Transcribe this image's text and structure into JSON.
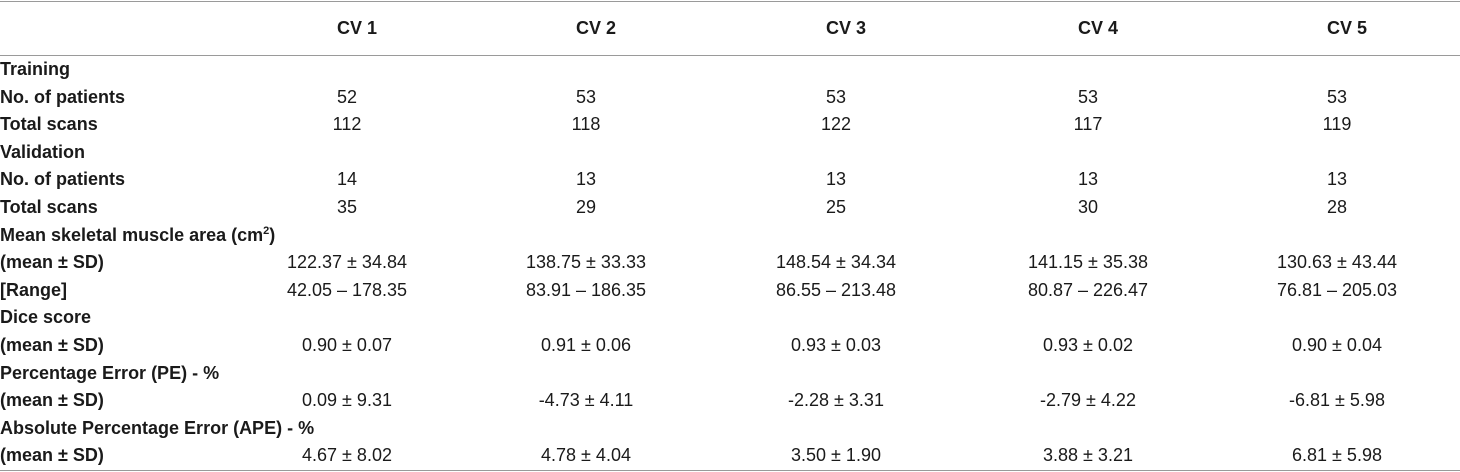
{
  "header": {
    "blank": "",
    "columns": [
      "CV 1",
      "CV 2",
      "CV 3",
      "CV 4",
      "CV 5"
    ]
  },
  "rows": [
    {
      "label": "Training",
      "values": [
        "",
        "",
        "",
        "",
        ""
      ]
    },
    {
      "label": "No. of patients",
      "values": [
        "52",
        "53",
        "53",
        "53",
        "53"
      ]
    },
    {
      "label": "Total scans",
      "values": [
        "112",
        "118",
        "122",
        "117",
        "119"
      ]
    },
    {
      "label": "Validation",
      "values": [
        "",
        "",
        "",
        "",
        ""
      ]
    },
    {
      "label": "No. of patients",
      "values": [
        "14",
        "13",
        "13",
        "13",
        "13"
      ]
    },
    {
      "label": "Total scans",
      "values": [
        "35",
        "29",
        "25",
        "30",
        "28"
      ]
    },
    {
      "label": "Mean skeletal muscle area (cm",
      "label_sup": "2",
      "label_tail": ")",
      "values": [
        "",
        "",
        "",
        "",
        ""
      ]
    },
    {
      "label": "(mean ± SD)",
      "values": [
        "122.37 ± 34.84",
        "138.75 ± 33.33",
        "148.54 ± 34.34",
        "141.15 ± 35.38",
        "130.63 ± 43.44"
      ]
    },
    {
      "label": "[Range]",
      "values": [
        "42.05 – 178.35",
        "83.91 – 186.35",
        "86.55 – 213.48",
        "80.87 – 226.47",
        "76.81 – 205.03"
      ]
    },
    {
      "label": "Dice score",
      "values": [
        "",
        "",
        "",
        "",
        ""
      ]
    },
    {
      "label": "(mean ± SD)",
      "values": [
        "0.90 ± 0.07",
        "0.91 ± 0.06",
        "0.93 ± 0.03",
        "0.93 ± 0.02",
        "0.90 ± 0.04"
      ]
    },
    {
      "label": "Percentage Error (PE) - %",
      "values": [
        "",
        "",
        "",
        "",
        ""
      ]
    },
    {
      "label": "(mean ± SD)",
      "values": [
        "0.09 ± 9.31",
        "-4.73 ± 4.11",
        "-2.28 ± 3.31",
        "-2.79 ± 4.22",
        "-6.81 ± 5.98"
      ]
    },
    {
      "label": "Absolute Percentage Error (APE) - %",
      "values": [
        "",
        "",
        "",
        "",
        ""
      ]
    },
    {
      "label": "(mean ± SD)",
      "values": [
        "4.67 ± 8.02",
        "4.78 ± 4.04",
        "3.50 ± 1.90",
        "3.88 ± 3.21",
        "6.81 ± 5.98"
      ]
    }
  ]
}
